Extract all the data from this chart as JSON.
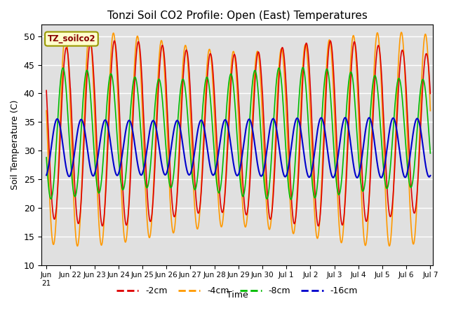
{
  "title": "Tonzi Soil CO2 Profile: Open (East) Temperatures",
  "xlabel": "Time",
  "ylabel": "Soil Temperature (C)",
  "ylim": [
    10,
    52
  ],
  "yticks": [
    10,
    15,
    20,
    25,
    30,
    35,
    40,
    45,
    50
  ],
  "background_color": "#e0e0e0",
  "legend_label": "TZ_soilco2",
  "series": [
    {
      "label": "-2cm",
      "color": "#dd0000"
    },
    {
      "label": "-4cm",
      "color": "#ff9900"
    },
    {
      "label": "-8cm",
      "color": "#00bb00"
    },
    {
      "label": "-16cm",
      "color": "#0000cc"
    }
  ],
  "n_days": 16,
  "points_per_day": 144,
  "mean_2cm": 33.0,
  "mean_4cm": 32.0,
  "mean_8cm": 33.0,
  "mean_16cm": 30.5,
  "amp_2cm": 15.0,
  "amp_4cm": 17.0,
  "amp_8cm": 10.5,
  "amp_16cm": 5.0,
  "phase_2cm": 0.0,
  "phase_4cm": 0.25,
  "phase_8cm": 0.9,
  "phase_16cm": 2.4,
  "tick_labels": [
    "Jun\n21",
    "Jun 22",
    "Jun 23",
    "Jun 24",
    "Jun 25",
    "Jun 26",
    "Jun 27",
    "Jun 28",
    "Jun 29",
    "Jun 30",
    "Jul 1",
    "Jul 2",
    "Jul 3",
    "Jul 4",
    "Jul 5",
    "Jul 6",
    "Jul 7"
  ]
}
